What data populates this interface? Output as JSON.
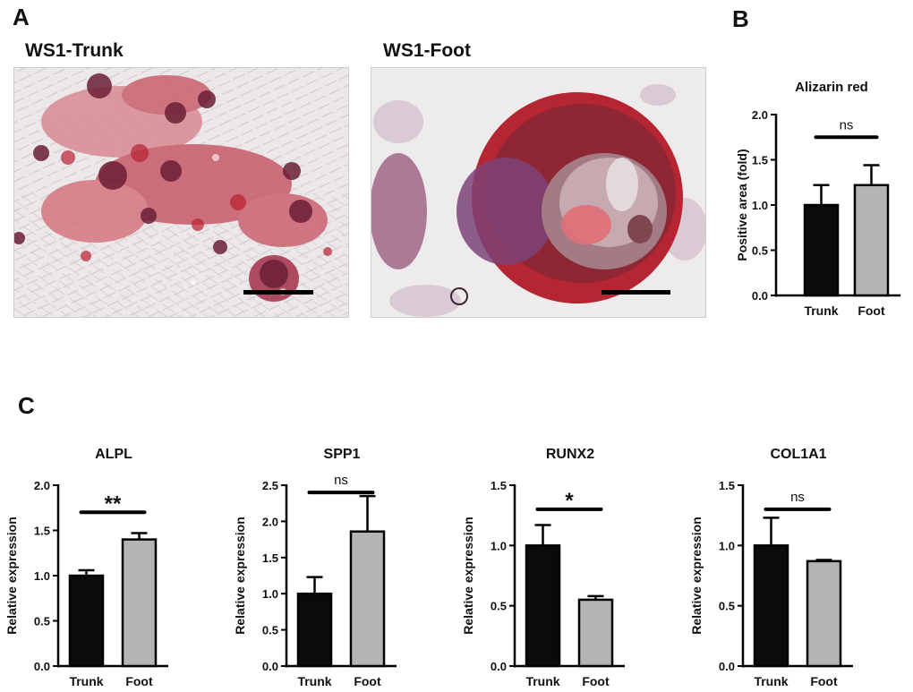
{
  "panels": {
    "a": {
      "letter": "A"
    },
    "b": {
      "letter": "B"
    },
    "c": {
      "letter": "C"
    }
  },
  "images": {
    "trunk": {
      "title": "WS1-Trunk"
    },
    "foot": {
      "title": "WS1-Foot"
    }
  },
  "colors": {
    "trunk_bar": "#0b0b0b",
    "foot_bar": "#b4b4b4",
    "stain_red": "#c0313c",
    "stain_dark": "#5b1b2e",
    "culture_bg": "#ece9ea"
  },
  "chart_data": [
    {
      "id": "alizarin",
      "type": "bar",
      "title": "Alizarin red",
      "ylabel": "Positive area (fold)",
      "xlabel": "",
      "categories": [
        "Trunk",
        "Foot"
      ],
      "values": [
        1.0,
        1.22
      ],
      "errors": [
        0.22,
        0.22
      ],
      "ylim": [
        0,
        2.0
      ],
      "yticks": [
        0,
        0.5,
        1.0,
        1.5,
        2.0
      ],
      "tick_labels": [
        "0.0",
        "0.5",
        "1.0",
        "1.5",
        "2.0"
      ],
      "significance": "ns"
    },
    {
      "id": "alpl",
      "type": "bar",
      "title": "ALPL",
      "ylabel": "Relative expression",
      "xlabel": "",
      "categories": [
        "Trunk",
        "Foot"
      ],
      "values": [
        1.0,
        1.4
      ],
      "errors": [
        0.06,
        0.07
      ],
      "ylim": [
        0,
        2.0
      ],
      "yticks": [
        0,
        0.5,
        1.0,
        1.5,
        2.0
      ],
      "tick_labels": [
        "0.0",
        "0.5",
        "1.0",
        "1.5",
        "2.0"
      ],
      "significance": "**"
    },
    {
      "id": "spp1",
      "type": "bar",
      "title": "SPP1",
      "ylabel": "Relative expression",
      "xlabel": "",
      "categories": [
        "Trunk",
        "Foot"
      ],
      "values": [
        1.0,
        1.86
      ],
      "errors": [
        0.23,
        0.49
      ],
      "ylim": [
        0,
        2.5
      ],
      "yticks": [
        0,
        0.5,
        1.0,
        1.5,
        2.0,
        2.5
      ],
      "tick_labels": [
        "0.0",
        "0.5",
        "1.0",
        "1.5",
        "2.0",
        "2.5"
      ],
      "significance": "ns"
    },
    {
      "id": "runx2",
      "type": "bar",
      "title": "RUNX2",
      "ylabel": "Relative expression",
      "xlabel": "",
      "categories": [
        "Trunk",
        "Foot"
      ],
      "values": [
        1.0,
        0.55
      ],
      "errors": [
        0.17,
        0.03
      ],
      "ylim": [
        0,
        1.5
      ],
      "yticks": [
        0,
        0.5,
        1.0,
        1.5
      ],
      "tick_labels": [
        "0.0",
        "0.5",
        "1.0",
        "1.5"
      ],
      "significance": "*"
    },
    {
      "id": "col1a1",
      "type": "bar",
      "title": "COL1A1",
      "ylabel": "Relative expression",
      "xlabel": "",
      "categories": [
        "Trunk",
        "Foot"
      ],
      "values": [
        1.0,
        0.87
      ],
      "errors": [
        0.23,
        0.01
      ],
      "ylim": [
        0,
        1.5
      ],
      "yticks": [
        0,
        0.5,
        1.0,
        1.5
      ],
      "tick_labels": [
        "0.0",
        "0.5",
        "1.0",
        "1.5"
      ],
      "significance": "ns"
    }
  ]
}
